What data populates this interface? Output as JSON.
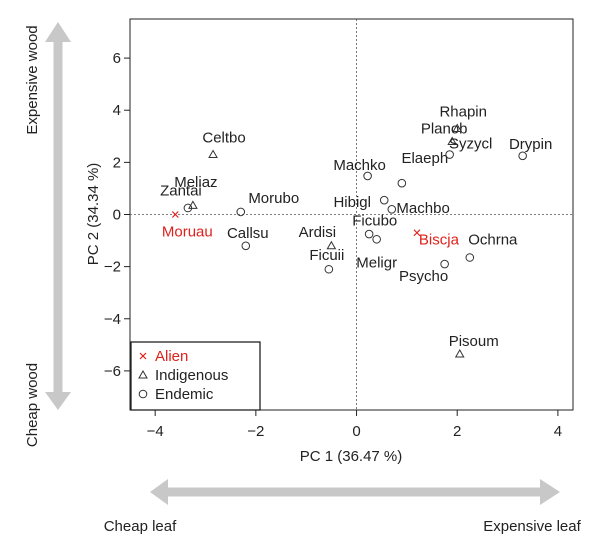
{
  "chart_data": {
    "type": "scatter",
    "xlabel": "PC 1 (36.47 %)",
    "ylabel": "PC 2 (34.34 %)",
    "xlim": [
      -4.5,
      4.3
    ],
    "ylim": [
      -7.5,
      7.5
    ],
    "xticks": [
      -4,
      -2,
      0,
      2,
      4
    ],
    "yticks": [
      -6,
      -4,
      -2,
      0,
      2,
      4,
      6
    ],
    "zero_lines": true,
    "legend_position": "bottom-left",
    "legend": [
      {
        "name": "Alien",
        "marker": "cross",
        "color": "#e0201b"
      },
      {
        "name": "Indigenous",
        "marker": "triangle",
        "color": "#333333"
      },
      {
        "name": "Endemic",
        "marker": "circle",
        "color": "#333333"
      }
    ],
    "annotations": {
      "top_left_arrow": "Expensive wood",
      "bottom_left_arrow": "Cheap wood",
      "bottom_left_label": "Cheap leaf",
      "bottom_right_label": "Expensive leaf"
    },
    "series": [
      {
        "name": "Alien",
        "points": [
          {
            "label": "Moruau",
            "x": -3.6,
            "y": 0.0
          },
          {
            "label": "Biscja",
            "x": 1.2,
            "y": -0.7
          }
        ]
      },
      {
        "name": "Indigenous",
        "points": [
          {
            "label": "Celtbo",
            "x": -2.85,
            "y": 2.3
          },
          {
            "label": "Zantai",
            "x": -3.25,
            "y": 0.35
          },
          {
            "label": "Ardisi",
            "x": -0.5,
            "y": -1.2
          },
          {
            "label": "Planob",
            "x": 1.9,
            "y": 2.8
          },
          {
            "label": "Rhapin",
            "x": 2.0,
            "y": 3.3
          },
          {
            "label": "Pisoum",
            "x": 2.05,
            "y": -5.35
          }
        ]
      },
      {
        "name": "Endemic",
        "points": [
          {
            "label": "Meliaz",
            "x": -3.35,
            "y": 0.25
          },
          {
            "label": "Morubo",
            "x": -2.3,
            "y": 0.1
          },
          {
            "label": "Callsu",
            "x": -2.2,
            "y": -1.2
          },
          {
            "label": "Ficuii",
            "x": -0.55,
            "y": -2.1
          },
          {
            "label": "Machko",
            "x": 0.22,
            "y": 1.48
          },
          {
            "label": "Elaeph",
            "x": 0.9,
            "y": 1.2
          },
          {
            "label": "Hibigl",
            "x": 0.55,
            "y": 0.55
          },
          {
            "label": "Ficubo",
            "x": 0.7,
            "y": 0.2
          },
          {
            "label": "Machbo",
            "x": 0.25,
            "y": -0.75
          },
          {
            "label": "Meligr",
            "x": 0.4,
            "y": -0.95
          },
          {
            "label": "Syzycl",
            "x": 1.85,
            "y": 2.3
          },
          {
            "label": "Drypin",
            "x": 3.3,
            "y": 2.25
          },
          {
            "label": "Ochrna",
            "x": 2.25,
            "y": -1.65
          },
          {
            "label": "Psycho",
            "x": 1.75,
            "y": -1.9
          }
        ]
      }
    ]
  }
}
